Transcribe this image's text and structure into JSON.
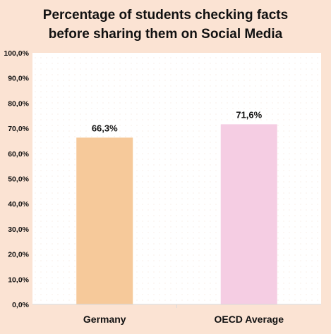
{
  "chart_data": {
    "type": "bar",
    "title_lines": [
      "Percentage of students checking facts",
      "before sharing them on Social Media"
    ],
    "categories": [
      "Germany",
      "OECD Average"
    ],
    "values": [
      66.3,
      71.6
    ],
    "data_labels": [
      "66,3%",
      "71,6%"
    ],
    "bar_colors": [
      "#f6c99a",
      "#f5cde3"
    ],
    "ylim": [
      0,
      100
    ],
    "y_ticks": [
      0,
      10,
      20,
      30,
      40,
      50,
      60,
      70,
      80,
      90,
      100
    ],
    "y_tick_labels": [
      "0,0%",
      "10,0%",
      "20,0%",
      "30,0%",
      "40,0%",
      "50,0%",
      "60,0%",
      "70,0%",
      "80,0%",
      "90,0%",
      "100,0%"
    ],
    "grid": false,
    "legend": "none"
  },
  "colors": {
    "background": "#fbe3d3",
    "plot_background": "#ffffff"
  }
}
